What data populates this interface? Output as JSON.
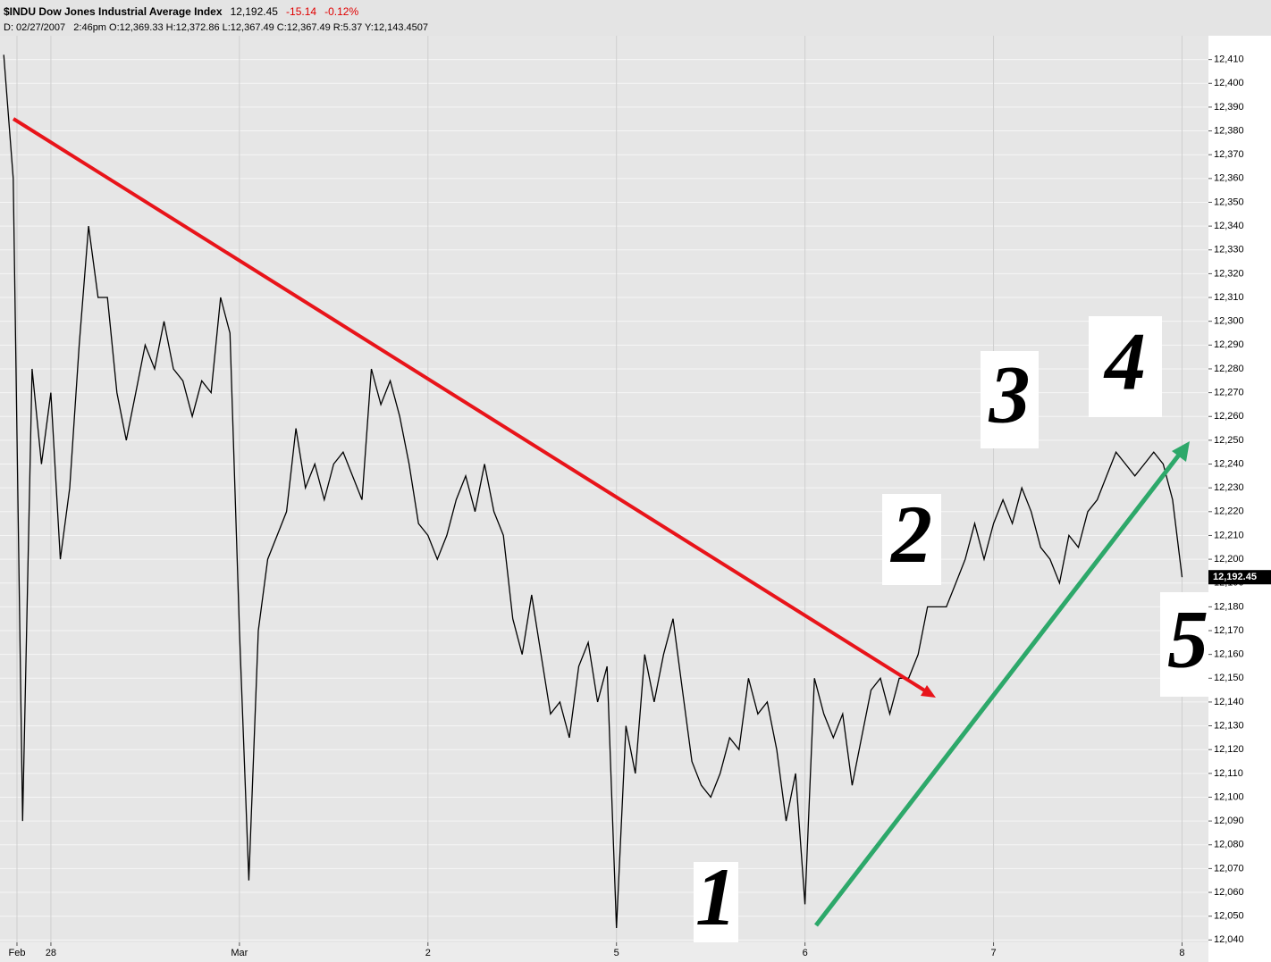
{
  "chart_data": {
    "type": "line",
    "title": "$INDU Dow Jones Industrial Average Index",
    "price": "12,192.45",
    "change": "-15.14",
    "change_pct": "-0.12%",
    "info": "D: 02/27/2007   2:46pm O:12,369.33 H:12,372.86 L:12,367.49 C:12,367.49 R:5.37 Y:12,143.4507",
    "x": [
      -1.25,
      -1.2,
      -1.15,
      -1.1,
      -1.05,
      -1,
      -0.95,
      -0.9,
      -0.85,
      -0.8,
      -0.75,
      -0.7,
      -0.65,
      -0.6,
      -0.55,
      -0.5,
      -0.45,
      -0.4,
      -0.35,
      -0.3,
      -0.25,
      -0.2,
      -0.15,
      -0.1,
      -0.05,
      0,
      0.05,
      0.1,
      0.15,
      0.2,
      0.25,
      0.3,
      0.35,
      0.4,
      0.45,
      0.5,
      0.55,
      0.6,
      0.65,
      0.7,
      0.75,
      0.8,
      0.85,
      0.9,
      0.95,
      1,
      1.05,
      1.1,
      1.15,
      1.2,
      1.25,
      1.3,
      1.35,
      1.4,
      1.45,
      1.5,
      1.55,
      1.6,
      1.65,
      1.7,
      1.75,
      1.8,
      1.85,
      1.9,
      1.95,
      2,
      2.05,
      2.1,
      2.15,
      2.2,
      2.25,
      2.3,
      2.35,
      2.4,
      2.45,
      2.5,
      2.55,
      2.6,
      2.65,
      2.7,
      2.75,
      2.8,
      2.85,
      2.9,
      2.95,
      3,
      3.05,
      3.1,
      3.15,
      3.2,
      3.25,
      3.3,
      3.35,
      3.4,
      3.45,
      3.5,
      3.55,
      3.6,
      3.65,
      3.7,
      3.75,
      3.8,
      3.85,
      3.9,
      3.95,
      4,
      4.05,
      4.1,
      4.15,
      4.2,
      4.25,
      4.3,
      4.35,
      4.4,
      4.45,
      4.5,
      4.55,
      4.6,
      4.65,
      4.7,
      4.75,
      4.8,
      4.85,
      4.9,
      4.95,
      5
    ],
    "series": [
      {
        "color": "#000000",
        "values": [
          12412,
          12360,
          12090,
          12280,
          12240,
          12270,
          12200,
          12230,
          12290,
          12340,
          12310,
          12310,
          12270,
          12250,
          12270,
          12290,
          12280,
          12300,
          12280,
          12275,
          12260,
          12275,
          12270,
          12310,
          12295,
          12170,
          12065,
          12170,
          12200,
          12210,
          12220,
          12255,
          12230,
          12240,
          12225,
          12240,
          12245,
          12235,
          12225,
          12280,
          12265,
          12275,
          12260,
          12240,
          12215,
          12210,
          12200,
          12210,
          12225,
          12235,
          12220,
          12240,
          12220,
          12210,
          12175,
          12160,
          12185,
          12160,
          12135,
          12140,
          12125,
          12155,
          12165,
          12140,
          12155,
          12045,
          12130,
          12110,
          12160,
          12140,
          12160,
          12175,
          12145,
          12115,
          12105,
          12100,
          12110,
          12125,
          12120,
          12150,
          12135,
          12140,
          12120,
          12090,
          12110,
          12055,
          12150,
          12135,
          12125,
          12135,
          12105,
          12125,
          12145,
          12150,
          12135,
          12150,
          12150,
          12160,
          12180,
          12180,
          12180,
          12190,
          12200,
          12215,
          12200,
          12215,
          12225,
          12215,
          12230,
          12220,
          12205,
          12200,
          12190,
          12210,
          12205,
          12220,
          12225,
          12235,
          12245,
          12240,
          12235,
          12240,
          12245,
          12240,
          12225,
          12192.45
        ]
      }
    ],
    "xlim": [
      -1.27,
      5.14
    ],
    "xticks": [
      {
        "value": -1.18,
        "label": "Feb"
      },
      {
        "value": -1,
        "label": "28"
      },
      {
        "value": 0,
        "label": "Mar"
      },
      {
        "value": 1,
        "label": "2"
      },
      {
        "value": 2,
        "label": "5"
      },
      {
        "value": 3,
        "label": "6"
      },
      {
        "value": 4,
        "label": "7"
      },
      {
        "value": 5,
        "label": "8"
      }
    ],
    "ylim": [
      12039,
      12420
    ],
    "yticks": [
      {
        "value": 12040,
        "label": "12,040"
      },
      {
        "value": 12050,
        "label": "12,050"
      },
      {
        "value": 12060,
        "label": "12,060"
      },
      {
        "value": 12070,
        "label": "12,070"
      },
      {
        "value": 12080,
        "label": "12,080"
      },
      {
        "value": 12090,
        "label": "12,090"
      },
      {
        "value": 12100,
        "label": "12,100"
      },
      {
        "value": 12110,
        "label": "12,110"
      },
      {
        "value": 12120,
        "label": "12,120"
      },
      {
        "value": 12130,
        "label": "12,130"
      },
      {
        "value": 12140,
        "label": "12,140"
      },
      {
        "value": 12150,
        "label": "12,150"
      },
      {
        "value": 12160,
        "label": "12,160"
      },
      {
        "value": 12170,
        "label": "12,170"
      },
      {
        "value": 12180,
        "label": "12,180"
      },
      {
        "value": 12190,
        "label": "12,190"
      },
      {
        "value": 12200,
        "label": "12,200"
      },
      {
        "value": 12210,
        "label": "12,210"
      },
      {
        "value": 12220,
        "label": "12,220"
      },
      {
        "value": 12230,
        "label": "12,230"
      },
      {
        "value": 12240,
        "label": "12,240"
      },
      {
        "value": 12250,
        "label": "12,250"
      },
      {
        "value": 12260,
        "label": "12,260"
      },
      {
        "value": 12270,
        "label": "12,270"
      },
      {
        "value": 12280,
        "label": "12,280"
      },
      {
        "value": 12290,
        "label": "12,290"
      },
      {
        "value": 12300,
        "label": "12,300"
      },
      {
        "value": 12310,
        "label": "12,310"
      },
      {
        "value": 12320,
        "label": "12,320"
      },
      {
        "value": 12330,
        "label": "12,330"
      },
      {
        "value": 12340,
        "label": "12,340"
      },
      {
        "value": 12350,
        "label": "12,350"
      },
      {
        "value": 12360,
        "label": "12,360"
      },
      {
        "value": 12370,
        "label": "12,370"
      },
      {
        "value": 12380,
        "label": "12,380"
      },
      {
        "value": 12390,
        "label": "12,390"
      },
      {
        "value": 12400,
        "label": "12,400"
      },
      {
        "value": 12410,
        "label": "12,410"
      }
    ],
    "grid": true,
    "annotations": [
      "1",
      "2",
      "3",
      "4",
      "5"
    ]
  }
}
